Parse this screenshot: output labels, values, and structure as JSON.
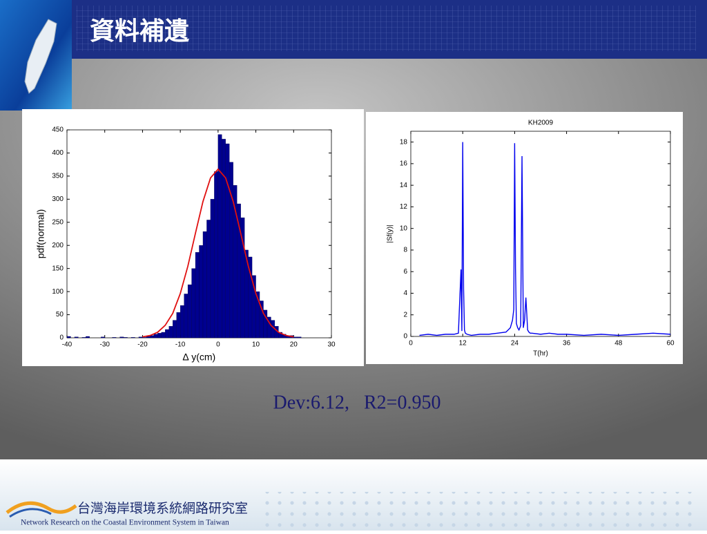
{
  "header": {
    "title": "資料補遺"
  },
  "chart_data": [
    {
      "type": "histogram",
      "bins": [
        -40,
        -39,
        -38,
        -37,
        -36,
        -35,
        -34,
        -33,
        -32,
        -31,
        -30,
        -29,
        -28,
        -27,
        -26,
        -25,
        -24,
        -23,
        -22,
        -21,
        -20,
        -19,
        -18,
        -17,
        -16,
        -15,
        -14,
        -13,
        -12,
        -11,
        -10,
        -9,
        -8,
        -7,
        -6,
        -5,
        -4,
        -3,
        -2,
        -1,
        0,
        1,
        2,
        3,
        4,
        5,
        6,
        7,
        8,
        9,
        10,
        11,
        12,
        13,
        14,
        15,
        16,
        17,
        18,
        19,
        20,
        21,
        22
      ],
      "values": [
        3,
        0,
        2,
        0,
        1,
        3,
        0,
        0,
        0,
        2,
        0,
        0,
        1,
        0,
        2,
        1,
        0,
        1,
        0,
        2,
        1,
        3,
        5,
        8,
        10,
        12,
        18,
        25,
        38,
        55,
        70,
        95,
        115,
        150,
        185,
        200,
        230,
        255,
        300,
        360,
        440,
        430,
        420,
        380,
        330,
        290,
        260,
        190,
        175,
        135,
        100,
        80,
        60,
        45,
        38,
        25,
        12,
        8,
        4,
        5,
        2,
        2
      ],
      "color": "#00008f",
      "fit": {
        "color": "#e01010",
        "x": [
          -20,
          -18,
          -16,
          -14,
          -12,
          -10,
          -8,
          -6,
          -4,
          -2,
          0,
          2,
          4,
          6,
          8,
          10,
          12,
          14,
          16,
          18,
          20
        ],
        "values": [
          2,
          5,
          12,
          27,
          53,
          96,
          155,
          226,
          295,
          346,
          365,
          346,
          295,
          226,
          155,
          96,
          53,
          27,
          12,
          5,
          2
        ]
      },
      "xlabel": "∆ y(cm)",
      "ylabel": "pdf(normal)",
      "xlim": [
        -40,
        30
      ],
      "xticks": [
        -40,
        -30,
        -20,
        -10,
        0,
        10,
        20,
        30
      ],
      "ylim": [
        0,
        450
      ],
      "yticks": [
        0,
        50,
        100,
        150,
        200,
        250,
        300,
        350,
        400,
        450
      ]
    },
    {
      "type": "line",
      "title": "KH2009",
      "x": [
        2,
        4,
        6,
        8,
        10,
        11,
        11.6,
        11.8,
        12,
        12.2,
        12.4,
        12.6,
        13,
        14,
        16,
        18,
        20,
        22,
        23,
        23.5,
        23.8,
        24,
        24.2,
        24.4,
        24.7,
        25,
        25.4,
        25.7,
        26,
        26.3,
        26.6,
        27,
        27.3,
        27.6,
        28,
        30,
        32,
        34,
        36,
        40,
        44,
        48,
        52,
        56,
        60
      ],
      "values": [
        0.1,
        0.2,
        0.1,
        0.2,
        0.2,
        0.3,
        6.2,
        0.5,
        18,
        4.4,
        0.6,
        0.3,
        0.2,
        0.1,
        0.2,
        0.2,
        0.3,
        0.4,
        0.8,
        1.5,
        2.5,
        17.9,
        6.3,
        1.2,
        0.8,
        0.6,
        1.0,
        16.7,
        0.8,
        1.5,
        3.6,
        0.6,
        0.4,
        0.3,
        0.3,
        0.2,
        0.3,
        0.2,
        0.2,
        0.1,
        0.2,
        0.1,
        0.2,
        0.3,
        0.2
      ],
      "color": "#0000ee",
      "xlabel": "T(hr)",
      "ylabel": "|Sf(y)|",
      "xlim": [
        0,
        60
      ],
      "xticks": [
        0,
        12,
        24,
        36,
        48,
        60
      ],
      "ylim": [
        0,
        19
      ],
      "yticks": [
        0,
        2,
        4,
        6,
        8,
        10,
        12,
        14,
        16,
        18
      ]
    }
  ],
  "caption": "Dev:6.12,   R2=0.950",
  "footer": {
    "org_zh": "台灣海岸環境系統網路研究室",
    "org_en": "Network Research on the Coastal Environment System in Taiwan"
  }
}
